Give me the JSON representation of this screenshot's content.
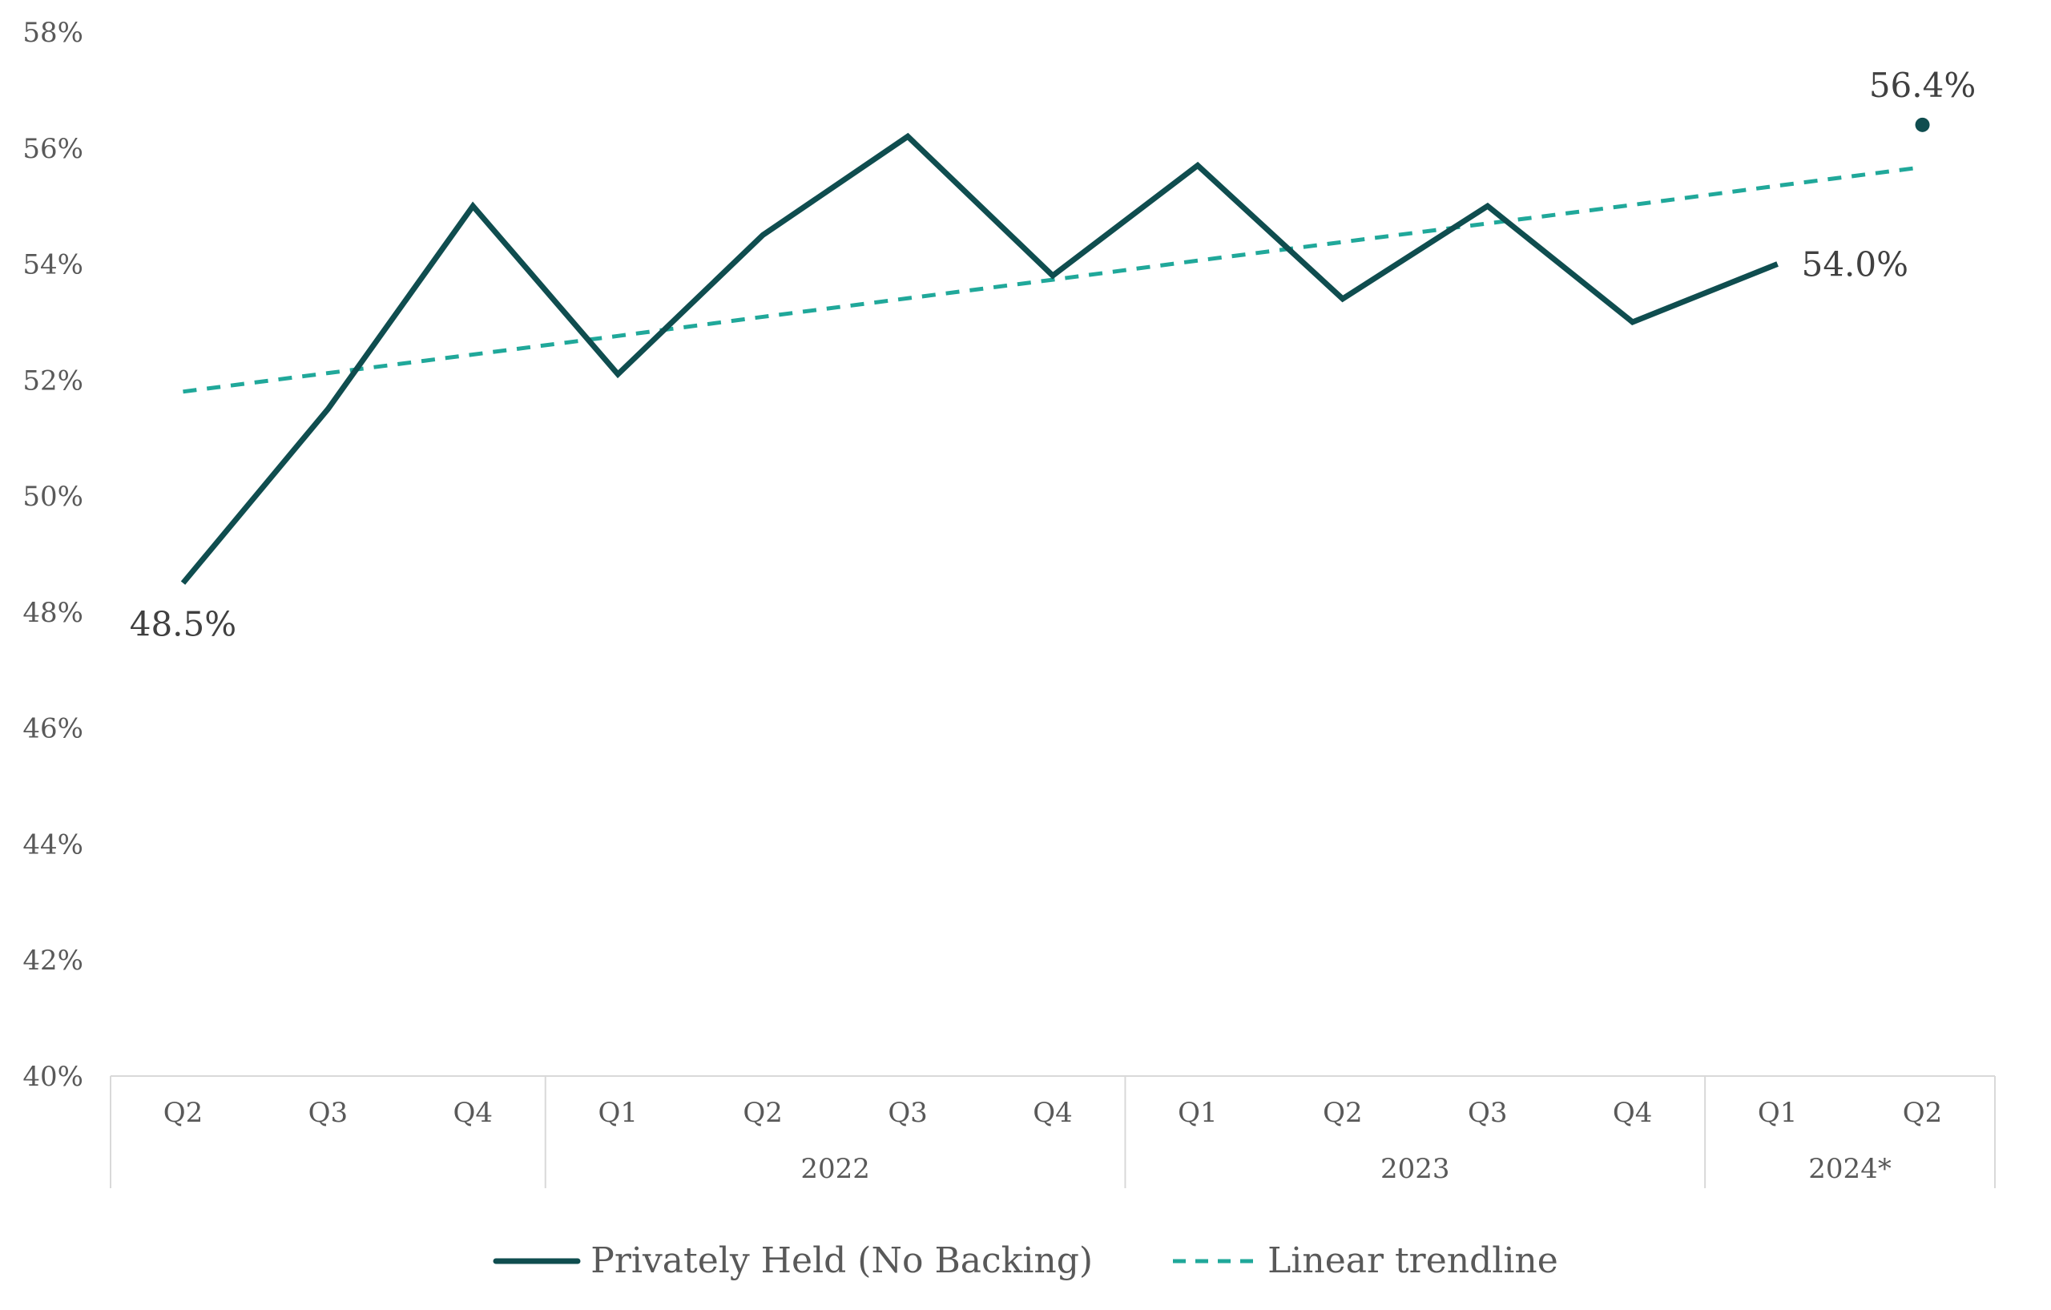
{
  "chart_data": {
    "type": "line",
    "x": [
      "Q2",
      "Q3",
      "Q4",
      "Q1",
      "Q2",
      "Q3",
      "Q4",
      "Q1",
      "Q2",
      "Q3",
      "Q4",
      "Q1",
      "Q2"
    ],
    "groups": [
      {
        "label": "",
        "count": 3
      },
      {
        "label": "2022",
        "count": 4
      },
      {
        "label": "2023",
        "count": 4
      },
      {
        "label": "2024*",
        "count": 2
      }
    ],
    "ylim": [
      40,
      58
    ],
    "yticks": [
      40,
      42,
      44,
      46,
      48,
      50,
      52,
      54,
      56,
      58
    ],
    "ytick_labels": [
      "40%",
      "42%",
      "44%",
      "46%",
      "48%",
      "50%",
      "52%",
      "54%",
      "56%",
      "58%"
    ],
    "series": [
      {
        "name": "Privately Held (No Backing)",
        "color": "#0f4d4f",
        "style": "solid",
        "values": [
          48.5,
          51.5,
          55.0,
          52.1,
          54.5,
          56.2,
          53.8,
          55.7,
          53.4,
          55.0,
          53.0,
          54.0,
          null
        ],
        "extra_point": {
          "index": 12,
          "value": 56.4
        }
      },
      {
        "name": "Linear trendline",
        "color": "#20a89a",
        "style": "dashed",
        "values": [
          51.8,
          52.12,
          52.44,
          52.76,
          53.09,
          53.41,
          53.73,
          54.06,
          54.38,
          54.7,
          55.02,
          55.35,
          55.67
        ]
      }
    ],
    "data_labels": [
      {
        "index": 0,
        "text": "48.5%"
      },
      {
        "index": 11,
        "text": "54.0%"
      },
      {
        "index": 12,
        "text": "56.4%"
      }
    ],
    "grid": false,
    "legend_position": "bottom"
  }
}
